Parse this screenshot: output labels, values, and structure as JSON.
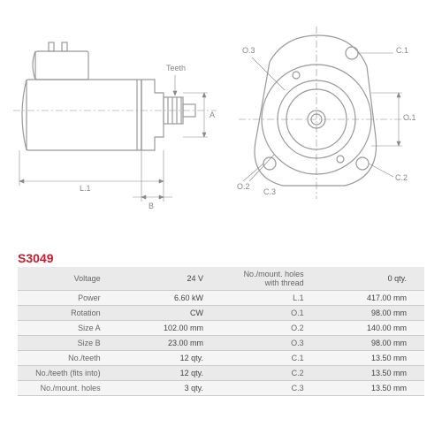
{
  "partNumber": "S3049",
  "diagram": {
    "stroke": "#999999",
    "dimLineColor": "#888888",
    "fill": "#ffffff",
    "labels": {
      "teeth": "Teeth",
      "A": "A",
      "B": "B",
      "L1": "L.1",
      "O1": "O.1",
      "O2": "O.2",
      "O3": "O.3",
      "C1": "C.1",
      "C2": "C.2",
      "C3": "C.3"
    }
  },
  "specs": {
    "left": [
      {
        "label": "Voltage",
        "value": "24 V"
      },
      {
        "label": "Power",
        "value": "6.60 kW"
      },
      {
        "label": "Rotation",
        "value": "CW"
      },
      {
        "label": "Size A",
        "value": "102.00 mm"
      },
      {
        "label": "Size B",
        "value": "23.00 mm"
      },
      {
        "label": "No./teeth",
        "value": "12 qty."
      },
      {
        "label": "No./teeth (fits into)",
        "value": "12 qty."
      },
      {
        "label": "No./mount. holes",
        "value": "3 qty."
      }
    ],
    "right": [
      {
        "label": "No./mount. holes with thread",
        "value": "0 qty."
      },
      {
        "label": "L.1",
        "value": "417.00 mm"
      },
      {
        "label": "O.1",
        "value": "98.00 mm"
      },
      {
        "label": "O.2",
        "value": "140.00 mm"
      },
      {
        "label": "O.3",
        "value": "98.00 mm"
      },
      {
        "label": "C.1",
        "value": "13.50 mm"
      },
      {
        "label": "C.2",
        "value": "13.50 mm"
      },
      {
        "label": "C.3",
        "value": "13.50 mm"
      }
    ]
  }
}
